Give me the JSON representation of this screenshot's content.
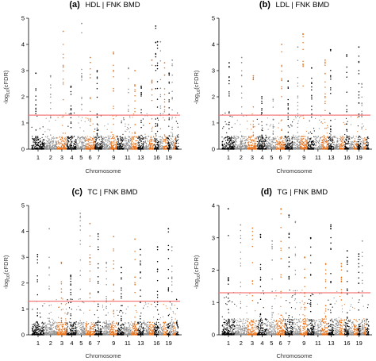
{
  "figure": {
    "colors": {
      "chrom_black": "#000000",
      "chrom_gray": "#8c8c8c",
      "chrom_orange": "#e8711a",
      "threshold_line": "#f47a7a"
    }
  },
  "chart_data": [
    {
      "type": "scatter",
      "panel_label": "(a)",
      "title": "HDL | FNK BMD",
      "xlabel": "Chromosome",
      "ylabel_prefix": "-log",
      "ylabel_sub": "10",
      "ylabel_suffix": "(cFDR)",
      "ylim": [
        0,
        5
      ],
      "yticks": [
        0,
        1,
        2,
        3,
        4,
        5
      ],
      "x_tick_labels": [
        "1",
        "2",
        "3",
        "4",
        "5",
        "6",
        "7",
        "9",
        "11",
        "13",
        "16",
        "19"
      ],
      "x_tick_chroms": [
        1,
        2,
        3,
        4,
        5,
        6,
        7,
        9,
        11,
        13,
        16,
        19
      ],
      "threshold": 1.3,
      "highlight_points": [
        {
          "chrom": 1,
          "y": 2.9
        },
        {
          "chrom": 2,
          "y": 2.8
        },
        {
          "chrom": 3,
          "y": 4.5
        },
        {
          "chrom": 4,
          "y": 2.4
        },
        {
          "chrom": 5,
          "y": 4.8
        },
        {
          "chrom": 6,
          "y": 3.5
        },
        {
          "chrom": 7,
          "y": 3.0
        },
        {
          "chrom": 9,
          "y": 3.7
        },
        {
          "chrom": 11,
          "y": 3.1
        },
        {
          "chrom": 12,
          "y": 3.0
        },
        {
          "chrom": 13,
          "y": 2.4
        },
        {
          "chrom": 15,
          "y": 3.4
        },
        {
          "chrom": 16,
          "y": 4.7
        },
        {
          "chrom": 16,
          "y": 4.1
        },
        {
          "chrom": 17,
          "y": 4.1
        },
        {
          "chrom": 18,
          "y": 3.3
        },
        {
          "chrom": 19,
          "y": 2.9
        },
        {
          "chrom": 20,
          "y": 3.4
        }
      ]
    },
    {
      "type": "scatter",
      "panel_label": "(b)",
      "title": "LDL | FNK BMD",
      "xlabel": "Chromosome",
      "ylabel_prefix": "-log",
      "ylabel_sub": "10",
      "ylabel_suffix": "(cFDR)",
      "ylim": [
        0,
        5
      ],
      "yticks": [
        0,
        1,
        2,
        3,
        4,
        5
      ],
      "x_tick_labels": [
        "1",
        "2",
        "3",
        "4",
        "5",
        "6",
        "7",
        "9",
        "11",
        "13",
        "16",
        "19"
      ],
      "x_tick_chroms": [
        1,
        2,
        3,
        4,
        5,
        6,
        7,
        9,
        11,
        13,
        16,
        19
      ],
      "threshold": 1.3,
      "highlight_points": [
        {
          "chrom": 1,
          "y": 3.3
        },
        {
          "chrom": 2,
          "y": 3.5
        },
        {
          "chrom": 3,
          "y": 2.8
        },
        {
          "chrom": 4,
          "y": 2.0
        },
        {
          "chrom": 5,
          "y": 1.9
        },
        {
          "chrom": 6,
          "y": 4.0
        },
        {
          "chrom": 7,
          "y": 2.6
        },
        {
          "chrom": 8,
          "y": 3.9
        },
        {
          "chrom": 9,
          "y": 4.4
        },
        {
          "chrom": 10,
          "y": 3.1
        },
        {
          "chrom": 12,
          "y": 3.4
        },
        {
          "chrom": 13,
          "y": 3.8
        },
        {
          "chrom": 16,
          "y": 3.6
        },
        {
          "chrom": 19,
          "y": 3.9
        },
        {
          "chrom": 20,
          "y": 2.5
        }
      ]
    },
    {
      "type": "scatter",
      "panel_label": "(c)",
      "title": "TC | FNK BMD",
      "xlabel": "Chromosome",
      "ylabel_prefix": "-log",
      "ylabel_sub": "10",
      "ylabel_suffix": "(cFDR)",
      "ylim": [
        0,
        5
      ],
      "yticks": [
        0,
        1,
        2,
        3,
        4,
        5
      ],
      "x_tick_labels": [
        "1",
        "2",
        "3",
        "4",
        "5",
        "6",
        "7",
        "9",
        "11",
        "13",
        "16",
        "19"
      ],
      "x_tick_chroms": [
        1,
        2,
        3,
        4,
        5,
        6,
        7,
        9,
        11,
        13,
        16,
        19
      ],
      "threshold": 1.3,
      "highlight_points": [
        {
          "chrom": 1,
          "y": 3.1
        },
        {
          "chrom": 2,
          "y": 4.1
        },
        {
          "chrom": 3,
          "y": 2.8
        },
        {
          "chrom": 4,
          "y": 2.3
        },
        {
          "chrom": 5,
          "y": 4.7
        },
        {
          "chrom": 6,
          "y": 4.3
        },
        {
          "chrom": 7,
          "y": 3.9
        },
        {
          "chrom": 8,
          "y": 2.8
        },
        {
          "chrom": 9,
          "y": 3.8
        },
        {
          "chrom": 10,
          "y": 2.6
        },
        {
          "chrom": 12,
          "y": 3.7
        },
        {
          "chrom": 13,
          "y": 3.3
        },
        {
          "chrom": 16,
          "y": 3.4
        },
        {
          "chrom": 19,
          "y": 4.1
        },
        {
          "chrom": 20,
          "y": 3.4
        }
      ]
    },
    {
      "type": "scatter",
      "panel_label": "(d)",
      "title": "TG | FNK BMD",
      "xlabel": "Chromosome",
      "ylabel_prefix": "-log",
      "ylabel_sub": "10",
      "ylabel_suffix": "(cFDR)",
      "ylim": [
        0,
        4
      ],
      "yticks": [
        0,
        1,
        2,
        3,
        4
      ],
      "x_tick_labels": [
        "1",
        "2",
        "3",
        "4",
        "5",
        "6",
        "7",
        "9",
        "11",
        "13",
        "16",
        "19"
      ],
      "x_tick_chroms": [
        1,
        2,
        3,
        4,
        5,
        6,
        7,
        9,
        11,
        13,
        16,
        19
      ],
      "threshold": 1.3,
      "highlight_points": [
        {
          "chrom": 1,
          "y": 3.9
        },
        {
          "chrom": 2,
          "y": 3.4
        },
        {
          "chrom": 3,
          "y": 3.3
        },
        {
          "chrom": 4,
          "y": 3.1
        },
        {
          "chrom": 5,
          "y": 2.9
        },
        {
          "chrom": 6,
          "y": 3.9
        },
        {
          "chrom": 7,
          "y": 3.7
        },
        {
          "chrom": 8,
          "y": 3.5
        },
        {
          "chrom": 9,
          "y": 2.4
        },
        {
          "chrom": 10,
          "y": 3.0
        },
        {
          "chrom": 12,
          "y": 2.2
        },
        {
          "chrom": 13,
          "y": 3.4
        },
        {
          "chrom": 15,
          "y": 2.2
        },
        {
          "chrom": 16,
          "y": 2.6
        },
        {
          "chrom": 19,
          "y": 2.5
        },
        {
          "chrom": 20,
          "y": 2.9
        }
      ]
    }
  ]
}
